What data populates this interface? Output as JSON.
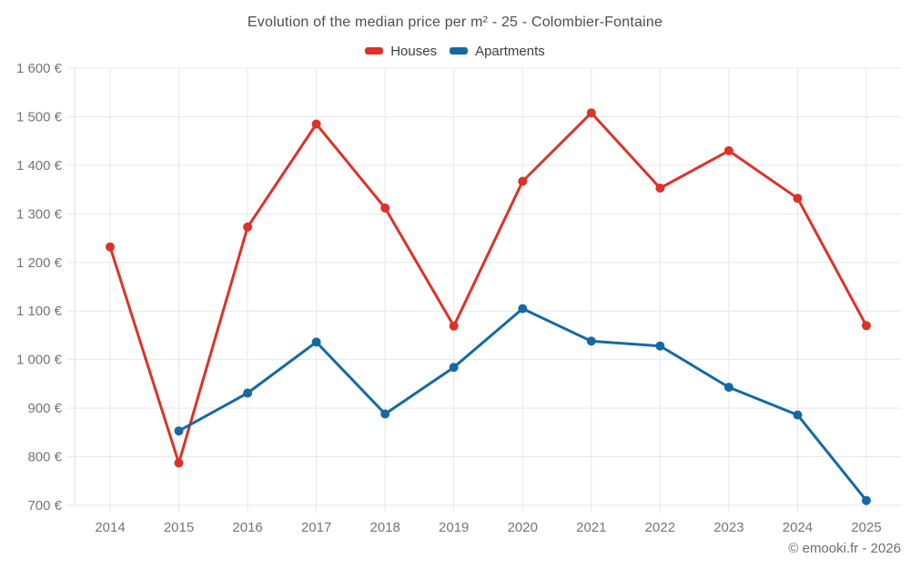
{
  "title": "Evolution of the median price per m² - 25 - Colombier-Fontaine",
  "footer": {
    "text": "© emooki.fr - 2026"
  },
  "chart_data": {
    "type": "line",
    "title": "Evolution of the median price per m² - 25 - Colombier-Fontaine",
    "categories": [
      "2014",
      "2015",
      "2016",
      "2017",
      "2018",
      "2019",
      "2020",
      "2021",
      "2022",
      "2023",
      "2024",
      "2025"
    ],
    "series": [
      {
        "name": "Houses",
        "color": "#dd3228",
        "values": [
          1232,
          787,
          1273,
          1485,
          1312,
          1069,
          1367,
          1508,
          1353,
          1430,
          1332,
          1070
        ]
      },
      {
        "name": "Apartments",
        "color": "#1569a2",
        "values": [
          null,
          853,
          931,
          1036,
          888,
          984,
          1105,
          1038,
          1028,
          943,
          886,
          710
        ]
      }
    ],
    "xlabel": "",
    "ylabel": "",
    "ylim": [
      700,
      1600
    ],
    "y_tick_step": 100,
    "y_tick_labels": [
      "700 €",
      "800 €",
      "900 €",
      "1 000 €",
      "1 100 €",
      "1 200 €",
      "1 300 €",
      "1 400 €",
      "1 500 €",
      "1 600 €"
    ],
    "grid": true,
    "legend_position": "top"
  },
  "colors": {
    "background": "#ffffff",
    "grid": "#e7e7e7",
    "axis_border": "#dddddd",
    "tick_label": "#757575",
    "title": "#4d4d4d",
    "legend_label": "#3d3d3d",
    "footer": "#6d6d6d"
  }
}
